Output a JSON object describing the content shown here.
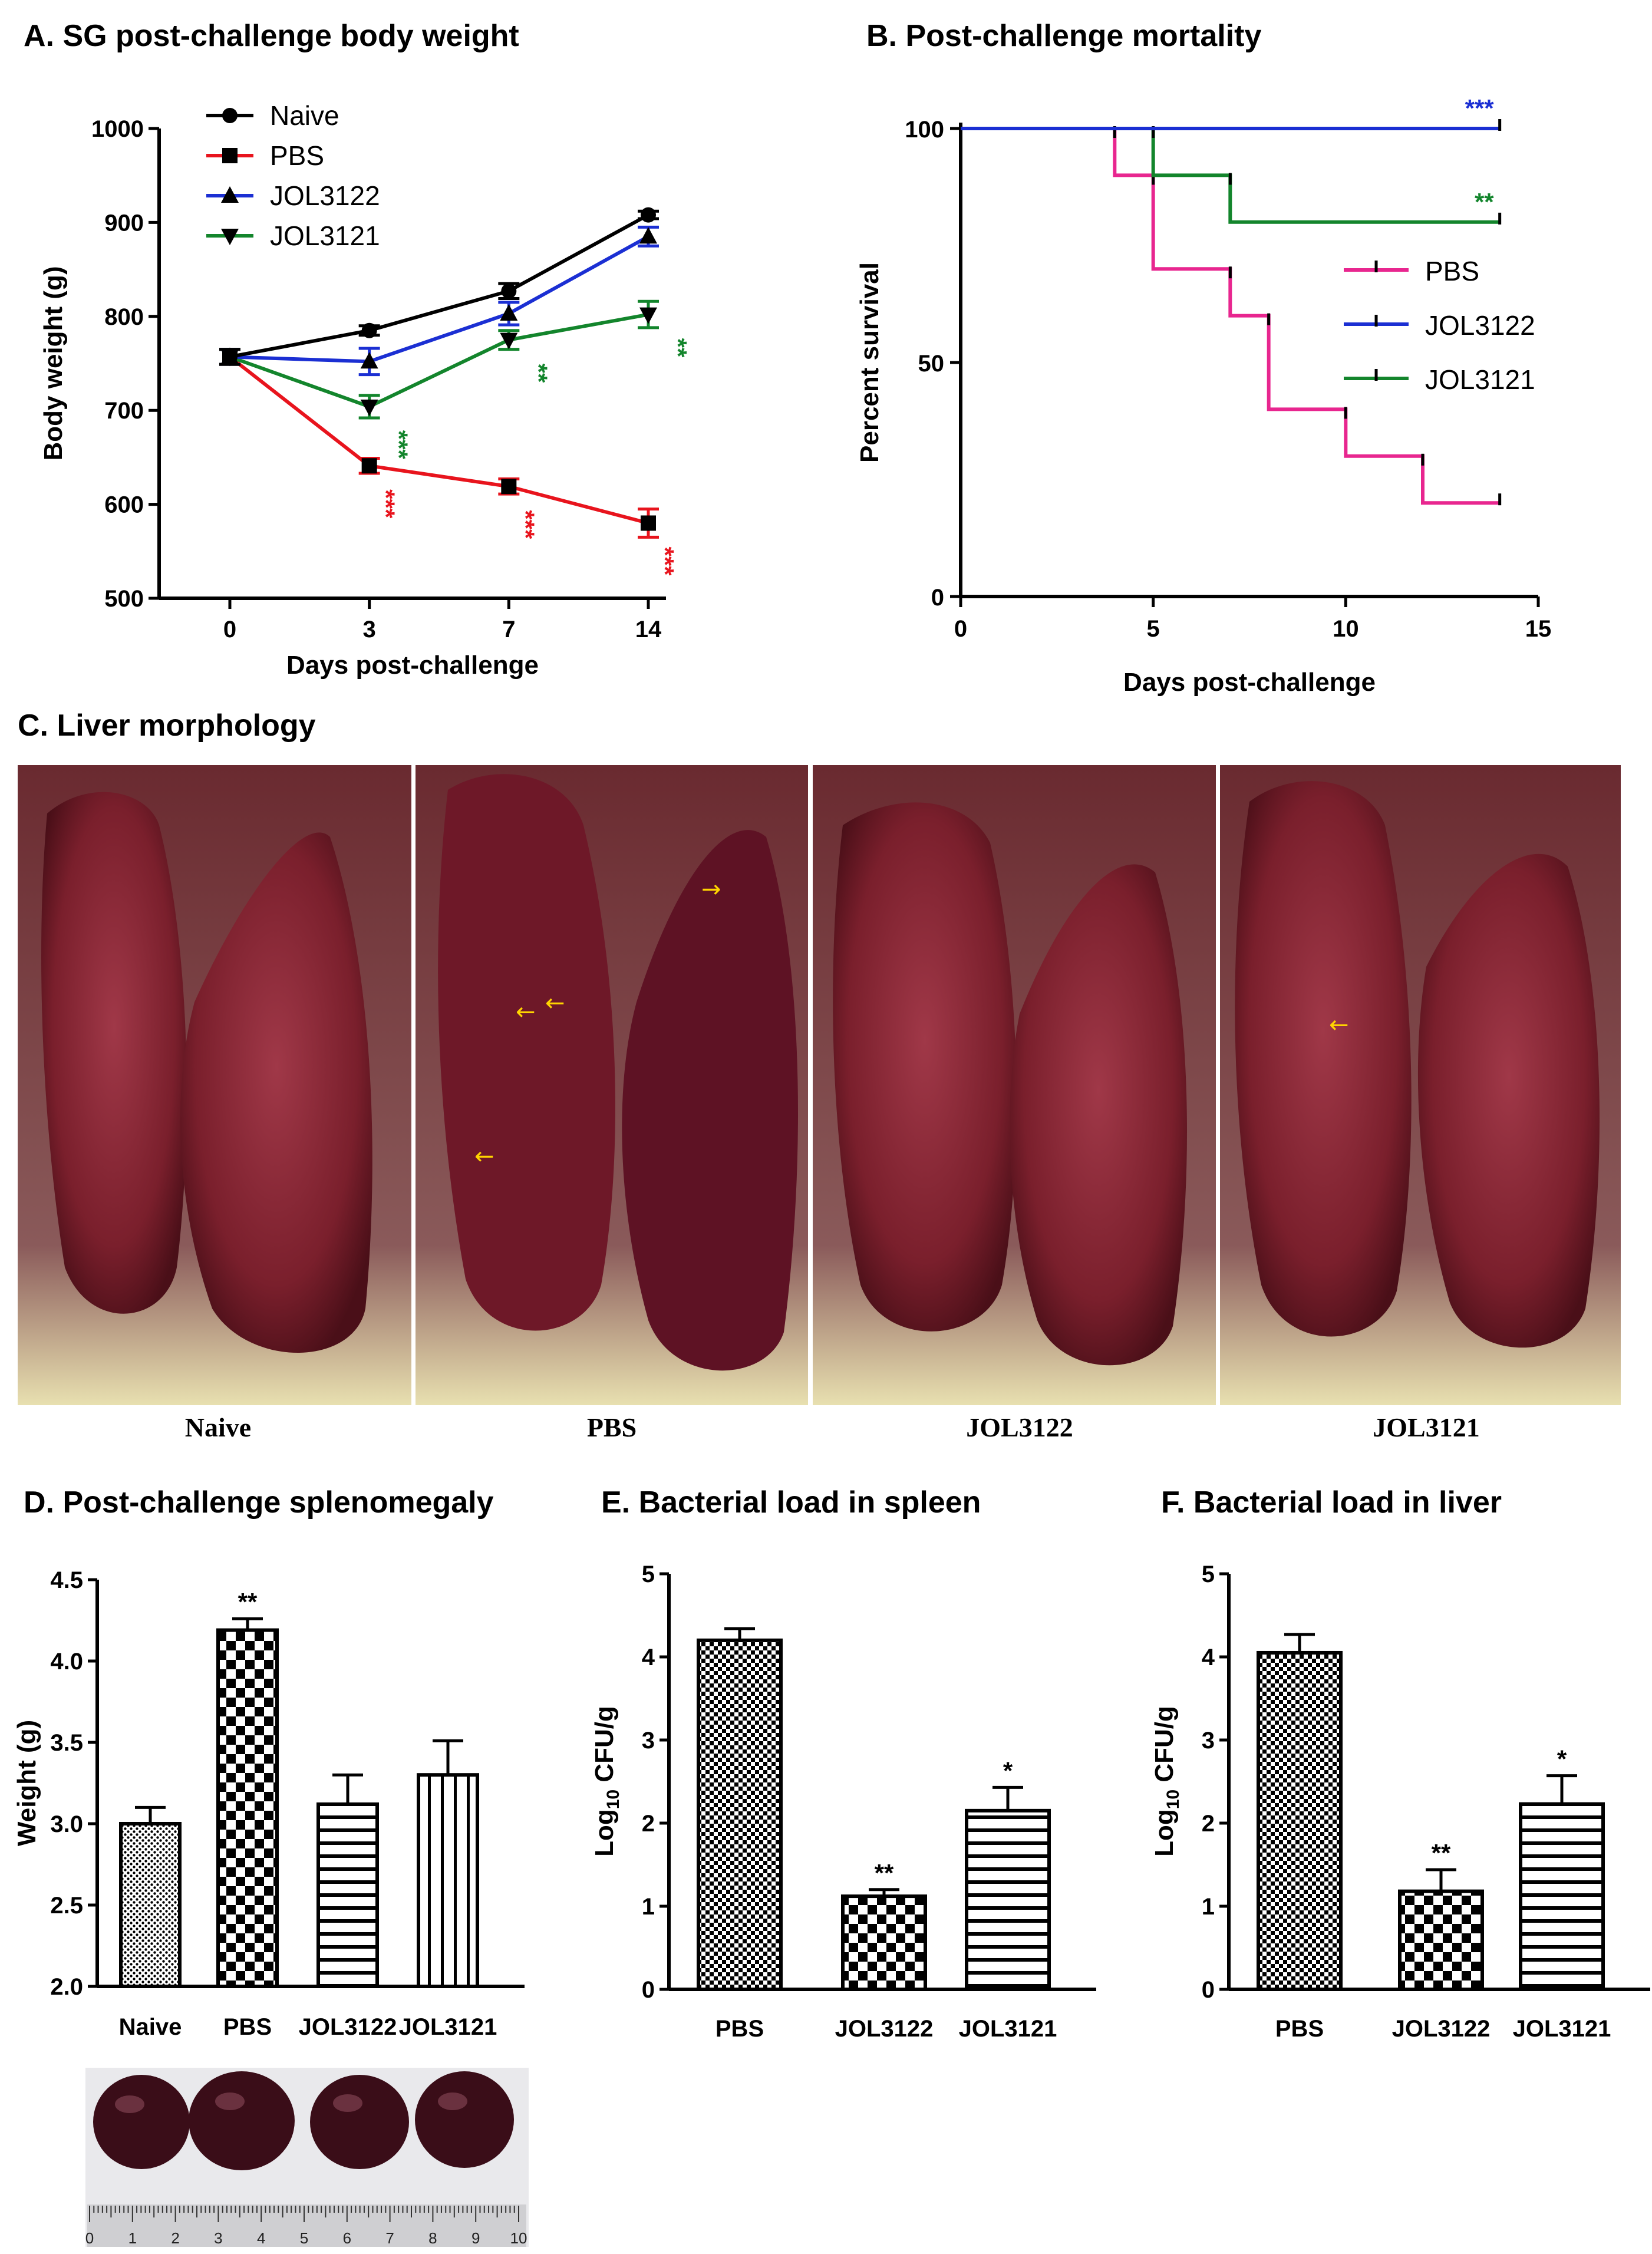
{
  "panels": {
    "a_title": "A. SG post-challenge body weight",
    "b_title": "B. Post-challenge mortality",
    "c_title": "C. Liver morphology",
    "d_title": "D. Post-challenge splenomegaly",
    "e_title": "E. Bacterial load in spleen",
    "f_title": "F. Bacterial load in liver"
  },
  "liver_photos": {
    "labels": [
      "Naive",
      "PBS",
      "JOL3122",
      "JOL3121"
    ]
  },
  "spleen_photo": {
    "ruler_ticks": [
      "0",
      "1",
      "2",
      "3",
      "4",
      "5",
      "6",
      "7",
      "8",
      "9",
      "10"
    ]
  },
  "colors": {
    "naive": "#000000",
    "pbs": "#e8141d",
    "jol3122": "#1b2fd3",
    "jol3121": "#13852c",
    "pbs_surv": "#e8268f",
    "photo_liver": "#7a1f2c",
    "photo_spleen": "#3a0d18"
  },
  "chart_data": [
    {
      "id": "A",
      "type": "line",
      "title": "A. SG post-challenge body weight",
      "xlabel": "Days post-challenge",
      "ylabel": "Body weight (g)",
      "categories": [
        "0",
        "3",
        "7",
        "14"
      ],
      "ylim": [
        500,
        1000
      ],
      "yticks": [
        "500",
        "600",
        "700",
        "800",
        "900",
        "1000"
      ],
      "series": [
        {
          "name": "Naive",
          "marker": "circle",
          "values": [
            757,
            785,
            827,
            908
          ],
          "errors": [
            8,
            5,
            8,
            4
          ],
          "sig": [
            "",
            "",
            "",
            ""
          ]
        },
        {
          "name": "PBS",
          "marker": "square",
          "values": [
            757,
            641,
            619,
            580
          ],
          "errors": [
            8,
            8,
            8,
            15
          ],
          "sig": [
            "",
            "***",
            "***",
            "***"
          ]
        },
        {
          "name": "JOL3122",
          "marker": "triangle",
          "values": [
            757,
            752,
            803,
            885
          ],
          "errors": [
            8,
            14,
            12,
            10
          ],
          "sig": [
            "",
            "",
            "",
            ""
          ]
        },
        {
          "name": "JOL3121",
          "marker": "triangle-down",
          "values": [
            757,
            704,
            775,
            802
          ],
          "errors": [
            8,
            12,
            10,
            14
          ],
          "sig": [
            "",
            "***",
            "**",
            "**"
          ]
        }
      ]
    },
    {
      "id": "B",
      "type": "line",
      "title": "B. Post-challenge mortality",
      "xlabel": "Days post-challenge",
      "ylabel": "Percent survival",
      "xlim": [
        0,
        15
      ],
      "ylim": [
        0,
        100
      ],
      "xticks": [
        "0",
        "5",
        "10",
        "15"
      ],
      "yticks": [
        "0",
        "50",
        "100"
      ],
      "series": [
        {
          "name": "PBS",
          "steps": [
            [
              0,
              100
            ],
            [
              4,
              90
            ],
            [
              5,
              70
            ],
            [
              7,
              60
            ],
            [
              8,
              40
            ],
            [
              10,
              30
            ],
            [
              12,
              20
            ],
            [
              14,
              20
            ]
          ],
          "sig": ""
        },
        {
          "name": "JOL3122",
          "steps": [
            [
              0,
              100
            ],
            [
              14,
              100
            ]
          ],
          "sig": "***"
        },
        {
          "name": "JOL3121",
          "steps": [
            [
              0,
              100
            ],
            [
              5,
              90
            ],
            [
              7,
              80
            ],
            [
              14,
              80
            ]
          ],
          "sig": "**"
        }
      ]
    },
    {
      "id": "D",
      "type": "bar",
      "title": "D. Post-challenge splenomegaly",
      "ylabel": "Weight (g)",
      "categories": [
        "Naive",
        "PBS",
        "JOL3122",
        "JOL3121"
      ],
      "values": [
        3.0,
        4.19,
        3.12,
        3.3
      ],
      "errors": [
        0.1,
        0.07,
        0.18,
        0.21
      ],
      "sig": [
        "",
        "**",
        "",
        ""
      ],
      "ylim": [
        2.0,
        4.5
      ],
      "yticks": [
        "2.0",
        "2.5",
        "3.0",
        "3.5",
        "4.0",
        "4.5"
      ]
    },
    {
      "id": "E",
      "type": "bar",
      "title": "E. Bacterial load in spleen",
      "ylabel": "Log10 CFU/g",
      "categories": [
        "PBS",
        "JOL3122",
        "JOL3121"
      ],
      "values": [
        4.2,
        1.12,
        2.15
      ],
      "errors": [
        0.14,
        0.08,
        0.28
      ],
      "sig": [
        "",
        "**",
        "*"
      ],
      "ylim": [
        0,
        5
      ],
      "yticks": [
        "0",
        "1",
        "2",
        "3",
        "4",
        "5"
      ]
    },
    {
      "id": "F",
      "type": "bar",
      "title": "F. Bacterial load in liver",
      "ylabel": "Log10 CFU/g",
      "categories": [
        "PBS",
        "JOL3122",
        "JOL3121"
      ],
      "values": [
        4.05,
        1.18,
        2.23
      ],
      "errors": [
        0.22,
        0.26,
        0.34
      ],
      "sig": [
        "",
        "**",
        "*"
      ],
      "ylim": [
        0,
        5
      ],
      "yticks": [
        "0",
        "1",
        "2",
        "3",
        "4",
        "5"
      ]
    }
  ]
}
